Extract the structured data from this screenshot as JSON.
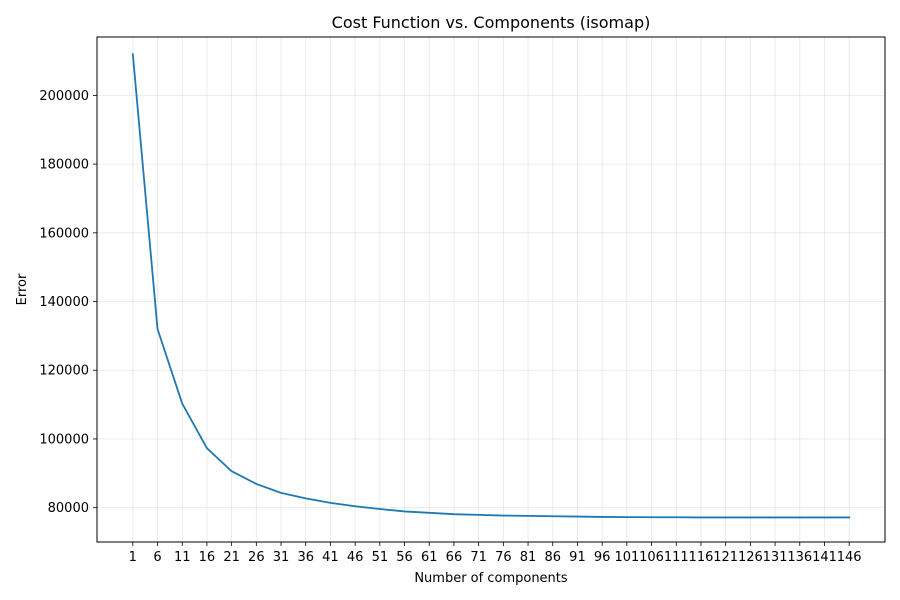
{
  "chart_data": {
    "type": "line",
    "title": "Cost Function vs. Components (isomap)",
    "xlabel": "Number of components",
    "ylabel": "Error",
    "x": [
      1,
      6,
      11,
      16,
      21,
      26,
      31,
      36,
      41,
      46,
      51,
      56,
      61,
      66,
      71,
      76,
      81,
      86,
      91,
      96,
      101,
      106,
      111,
      116,
      121,
      126,
      131,
      136,
      141,
      146
    ],
    "x_tick_labels": [
      "1",
      "6",
      "11",
      "16",
      "21",
      "26",
      "31",
      "36",
      "41",
      "46",
      "51",
      "56",
      "61",
      "66",
      "71",
      "76",
      "81",
      "86",
      "91",
      "96",
      "101",
      "106",
      "111",
      "116",
      "121",
      "126",
      "131",
      "136",
      "141",
      "146"
    ],
    "series": [
      {
        "color": "#1f77b4",
        "values": [
          212000,
          132000,
          110300,
          97300,
          90600,
          86900,
          84300,
          82700,
          81400,
          80400,
          79600,
          78900,
          78500,
          78100,
          77900,
          77700,
          77600,
          77500,
          77400,
          77300,
          77250,
          77200,
          77200,
          77150,
          77150,
          77150,
          77150,
          77150,
          77150,
          77150
        ]
      }
    ],
    "y_ticks": [
      80000,
      100000,
      120000,
      140000,
      160000,
      180000,
      200000
    ],
    "y_tick_labels": [
      "80000",
      "100000",
      "120000",
      "140000",
      "160000",
      "180000",
      "200000"
    ],
    "xlim": [
      -6.25,
      153.25
    ],
    "ylim": [
      70000,
      217000
    ],
    "grid": true,
    "legend": "none"
  }
}
